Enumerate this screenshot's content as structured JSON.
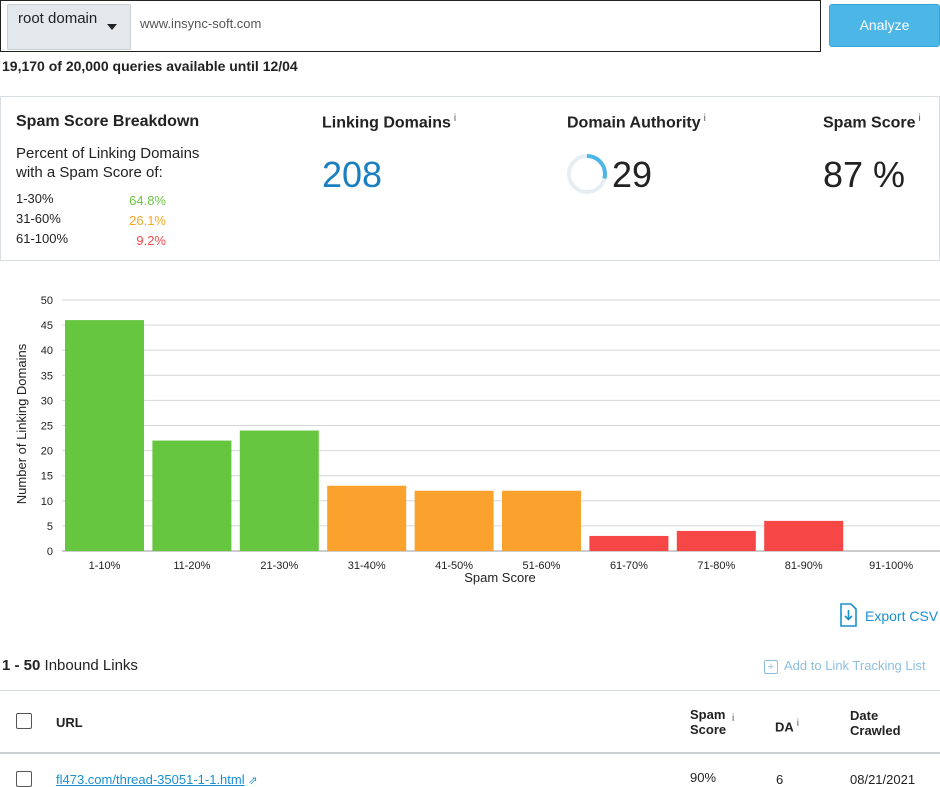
{
  "search": {
    "scope_label": "root domain",
    "url_value": "www.insync-soft.com",
    "analyze_label": "Analyze"
  },
  "quota": {
    "text": "19,170 of 20,000 queries available until 12/04"
  },
  "breakdown": {
    "title": "Spam Score Breakdown",
    "subtitle": "Percent of Linking Domains with a Spam Score of:",
    "ranges": [
      {
        "label": "1-30%",
        "value": "64.8%",
        "color": "#6cc644"
      },
      {
        "label": "31-60%",
        "value": "26.1%",
        "color": "#f5a623"
      },
      {
        "label": "61-100%",
        "value": "9.2%",
        "color": "#f04b4b"
      }
    ]
  },
  "metrics": {
    "linking_domains": {
      "label": "Linking Domains",
      "info": "i",
      "value": "208",
      "color": "#1a7fbf"
    },
    "domain_authority": {
      "label": "Domain Authority",
      "info": "i",
      "value": "29",
      "fraction": 0.29,
      "ring_color": "#4cb6e6"
    },
    "spam_score": {
      "label": "Spam Score",
      "info": "i",
      "value": "87 %"
    }
  },
  "chart_data": {
    "type": "bar",
    "xlabel": "Spam Score",
    "ylabel": "Number of Linking Domains",
    "ylim": [
      0,
      50
    ],
    "yticks": [
      0,
      5,
      10,
      15,
      20,
      25,
      30,
      35,
      40,
      45,
      50
    ],
    "grid": true,
    "categories": [
      "1-10%",
      "11-20%",
      "21-30%",
      "31-40%",
      "41-50%",
      "51-60%",
      "61-70%",
      "71-80%",
      "81-90%",
      "91-100%"
    ],
    "values": [
      46,
      22,
      24,
      13,
      12,
      12,
      3,
      4,
      6,
      0
    ],
    "colors": [
      "#66c63f",
      "#66c63f",
      "#66c63f",
      "#fba22e",
      "#fba22e",
      "#fba22e",
      "#f64646",
      "#f64646",
      "#f64646",
      "#f64646"
    ]
  },
  "export": {
    "label": "Export CSV"
  },
  "results": {
    "range": "1 - 50",
    "label": "Inbound Links",
    "add_tracking": "Add to Link Tracking List"
  },
  "table": {
    "headers": {
      "url": "URL",
      "spam_score": "Spam Score",
      "spam_score_info": "i",
      "da": "DA",
      "da_info": "i",
      "date_crawled": "Date Crawled"
    },
    "rows": [
      {
        "url": "fl473.com/thread-35051-1-1.html",
        "spam_score": "90%",
        "da": "6",
        "date": "08/21/2021"
      }
    ]
  }
}
